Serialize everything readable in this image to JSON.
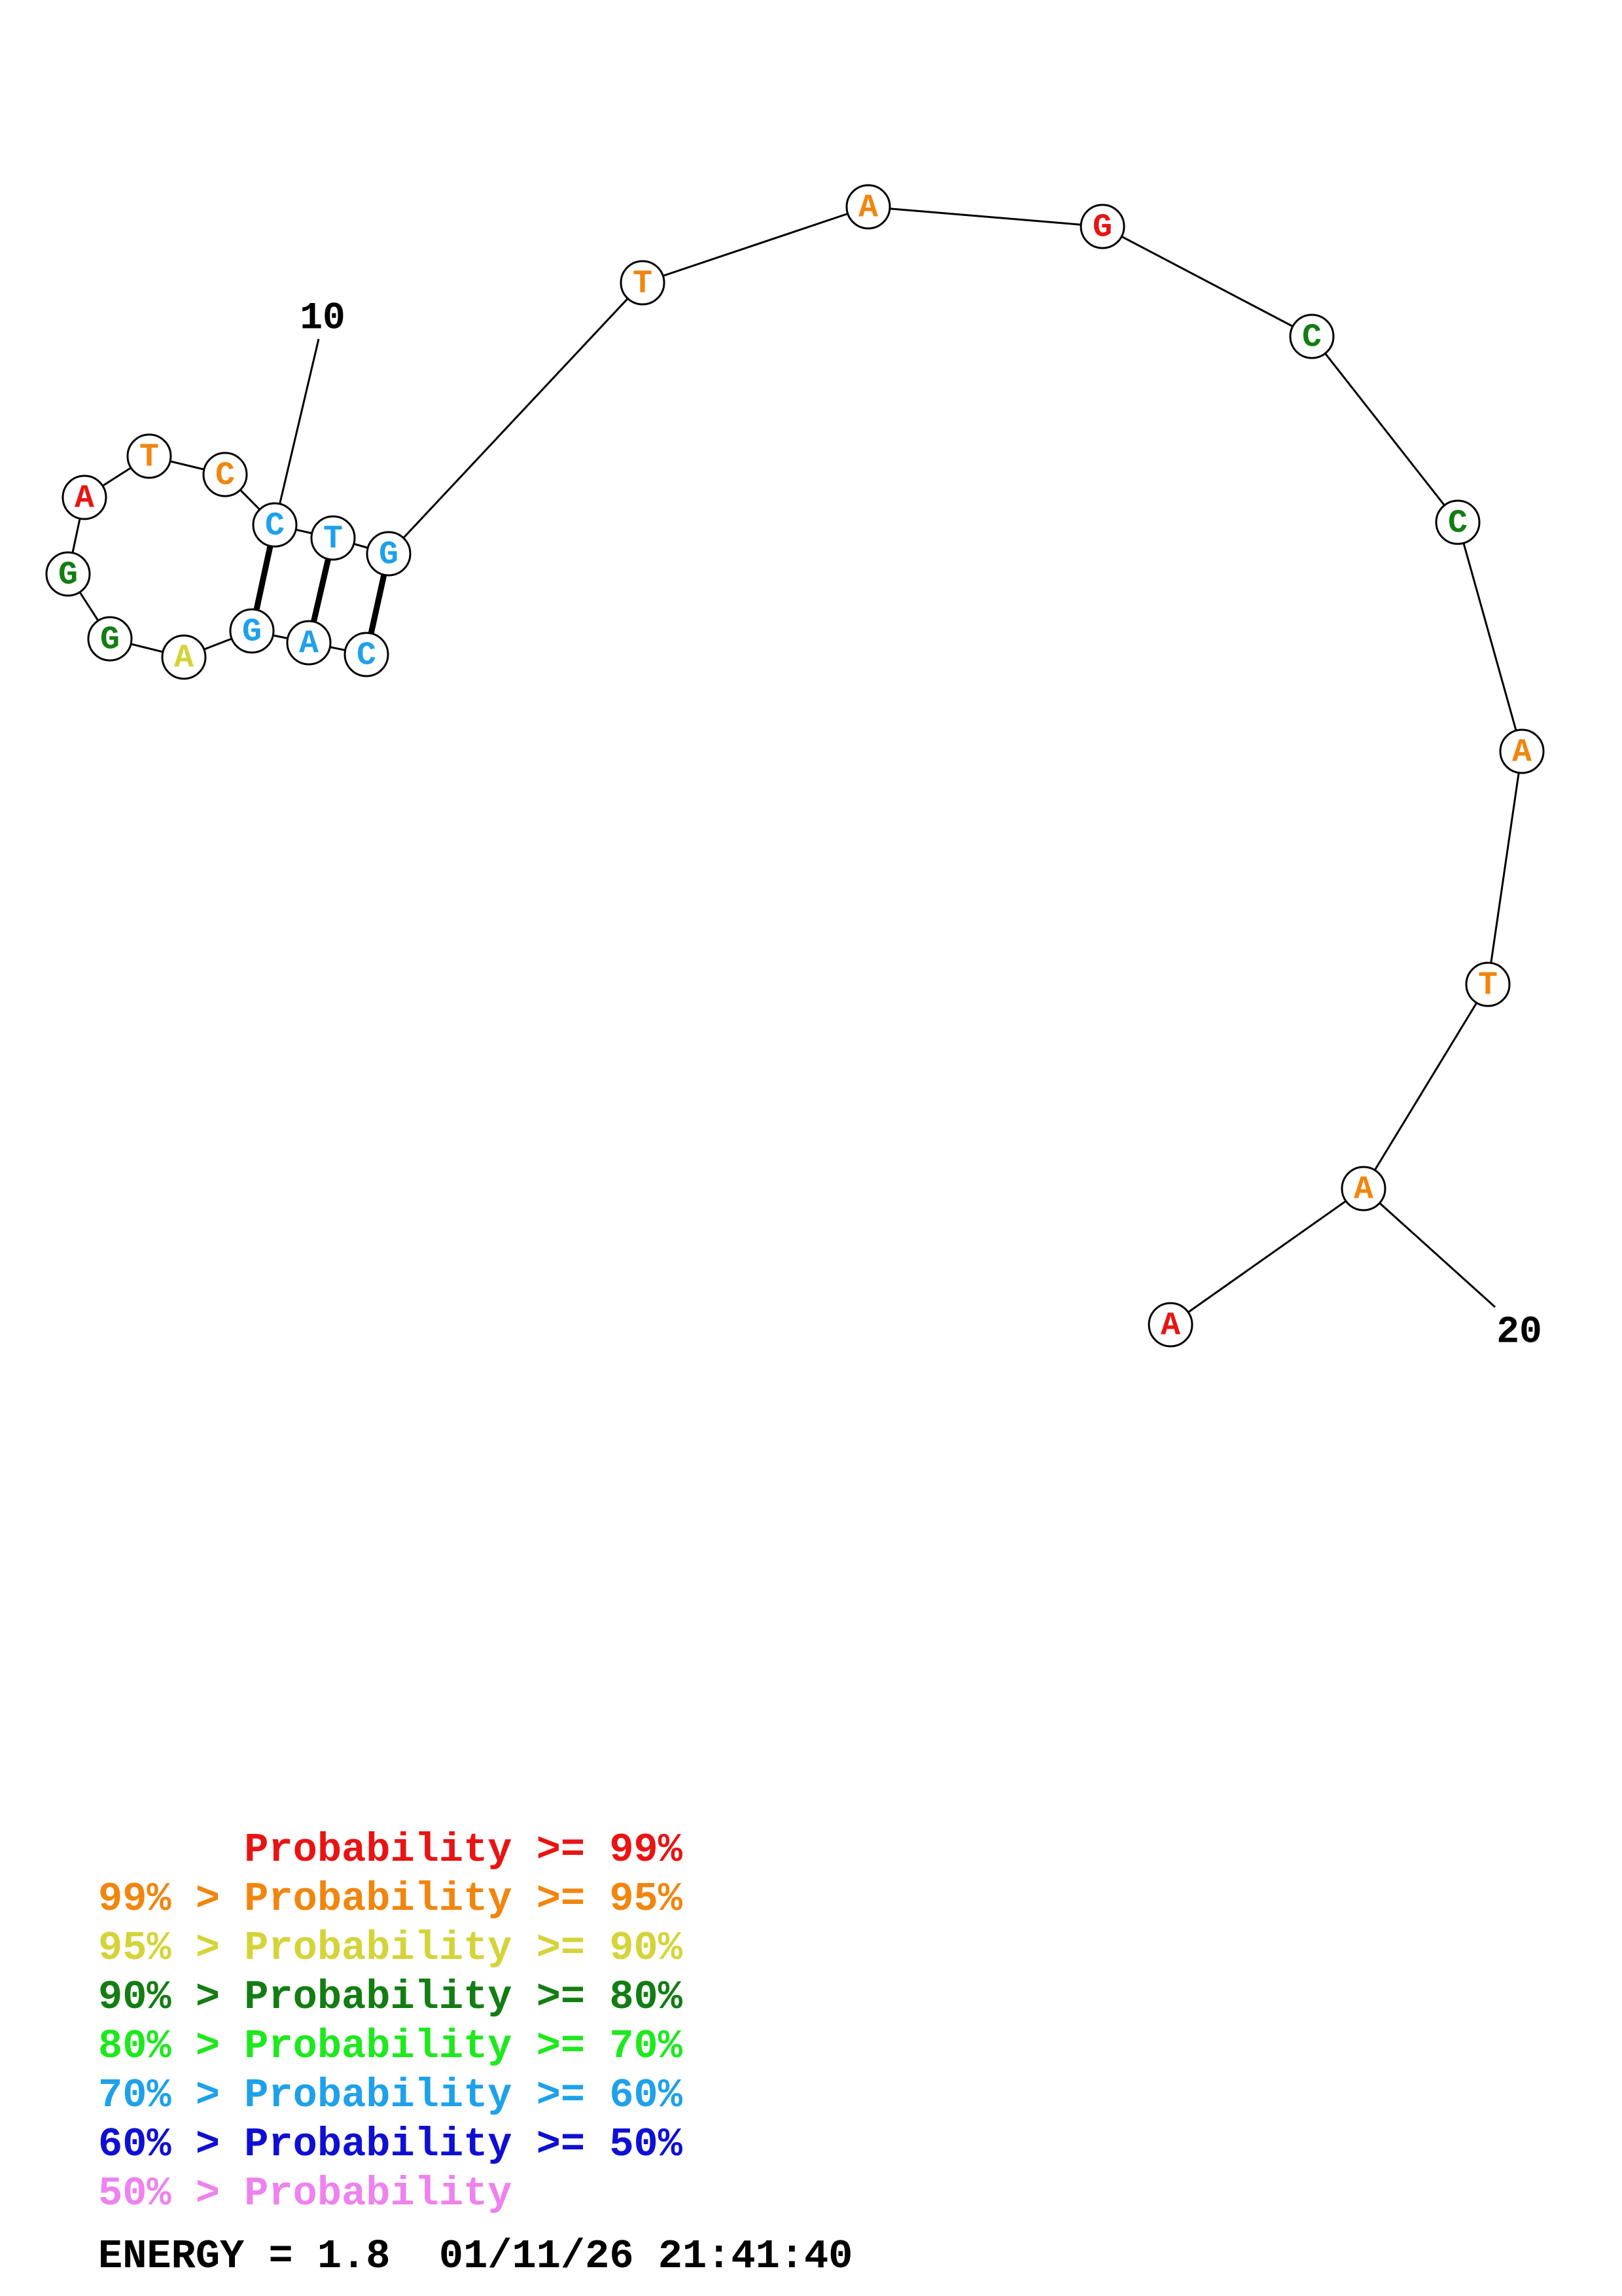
{
  "diagram": {
    "nucleotides": [
      {
        "letter": "C",
        "color": "#1ea1ea"
      },
      {
        "letter": "A",
        "color": "#1ea1ea"
      },
      {
        "letter": "G",
        "color": "#1ea1ea"
      },
      {
        "letter": "A",
        "color": "#d4d43a"
      },
      {
        "letter": "G",
        "color": "#137d13"
      },
      {
        "letter": "G",
        "color": "#137d13"
      },
      {
        "letter": "A",
        "color": "#e81414"
      },
      {
        "letter": "T",
        "color": "#f0860f"
      },
      {
        "letter": "C",
        "color": "#f0860f"
      },
      {
        "letter": "C",
        "color": "#1ea1ea"
      },
      {
        "letter": "T",
        "color": "#1ea1ea"
      },
      {
        "letter": "G",
        "color": "#1ea1ea"
      },
      {
        "letter": "T",
        "color": "#f0860f"
      },
      {
        "letter": "A",
        "color": "#f0860f"
      },
      {
        "letter": "G",
        "color": "#e81414"
      },
      {
        "letter": "C",
        "color": "#137d13"
      },
      {
        "letter": "C",
        "color": "#137d13"
      },
      {
        "letter": "A",
        "color": "#f0860f"
      },
      {
        "letter": "T",
        "color": "#f0860f"
      },
      {
        "letter": "A",
        "color": "#f0860f"
      },
      {
        "letter": "A",
        "color": "#e81414"
      }
    ],
    "base_pairs": [
      [
        1,
        12
      ],
      [
        2,
        11
      ],
      [
        3,
        10
      ]
    ],
    "index_labels": [
      "10",
      "20"
    ]
  },
  "legend": {
    "lines": [
      {
        "text": "      Probability >= 99%",
        "color": "#e81414"
      },
      {
        "text": "99% > Probability >= 95%",
        "color": "#f0860f"
      },
      {
        "text": "95% > Probability >= 90%",
        "color": "#d4d43a"
      },
      {
        "text": "90% > Probability >= 80%",
        "color": "#137d13"
      },
      {
        "text": "80% > Probability >= 70%",
        "color": "#1ee81e"
      },
      {
        "text": "70% > Probability >= 60%",
        "color": "#1ea1ea"
      },
      {
        "text": "60% > Probability >= 50%",
        "color": "#0f0fd4"
      },
      {
        "text": "50% > Probability",
        "color": "#ee82ee"
      }
    ],
    "energy": "ENERGY = 1.8  01/11/26 21:41:40"
  }
}
